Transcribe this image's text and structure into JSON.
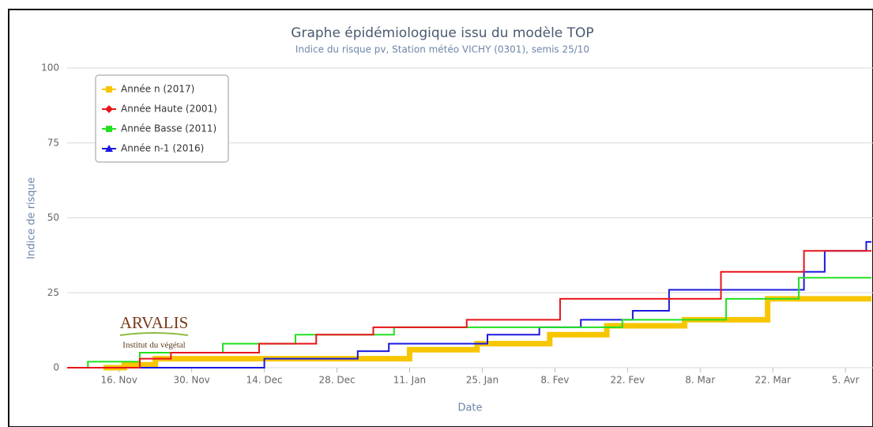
{
  "chart_data": {
    "type": "step-line",
    "title": "Graphe épidémiologique issu du modèle TOP",
    "subtitle": "Indice du risque pv, Station météo VICHY (0301), semis 25/10",
    "x_label": "Date",
    "y_label": "Indice de risque",
    "logo": {
      "name": "ARVALIS",
      "tagline": "Institut du végétal"
    },
    "xlim": [
      "11-06",
      "04-10"
    ],
    "xticks": [
      {
        "value": "11-16",
        "label": "16. Nov"
      },
      {
        "value": "11-30",
        "label": "30. Nov"
      },
      {
        "value": "12-14",
        "label": "14. Dec"
      },
      {
        "value": "12-28",
        "label": "28. Dec"
      },
      {
        "value": "01-11",
        "label": "11. Jan"
      },
      {
        "value": "01-25",
        "label": "25. Jan"
      },
      {
        "value": "02-08",
        "label": "8. Fev"
      },
      {
        "value": "02-22",
        "label": "22. Fev"
      },
      {
        "value": "03-08",
        "label": "8. Mar"
      },
      {
        "value": "03-22",
        "label": "22. Mar"
      },
      {
        "value": "04-05",
        "label": "5. Avr"
      }
    ],
    "ylim": [
      0,
      100
    ],
    "yticks": [
      0,
      25,
      50,
      75,
      100
    ],
    "grid": true,
    "legend": "top-left",
    "series": [
      {
        "name": "Année n (2017)",
        "color": "#f7c600",
        "marker": "square",
        "width": 7,
        "x": [
          "11-13",
          "11-17",
          "11-23",
          "01-11",
          "01-24",
          "02-07",
          "02-18",
          "03-05",
          "03-21",
          "04-10"
        ],
        "values": [
          0,
          1,
          3,
          6,
          8,
          11,
          14,
          16,
          23,
          23
        ]
      },
      {
        "name": "Année Haute (2001)",
        "color": "#e8141a",
        "marker": "diamond",
        "width": 2,
        "x": [
          "11-06",
          "11-20",
          "11-26",
          "12-13",
          "12-24",
          "01-04",
          "01-22",
          "02-09",
          "03-12",
          "03-28",
          "04-10"
        ],
        "values": [
          0,
          3,
          5,
          8,
          11,
          13.5,
          16,
          23,
          32,
          39,
          39
        ]
      },
      {
        "name": "Année Basse (2011)",
        "color": "#22e022",
        "marker": "square",
        "width": 2,
        "x": [
          "11-06",
          "11-10",
          "11-20",
          "12-06",
          "12-20",
          "01-08",
          "02-21",
          "03-13",
          "03-27",
          "04-10"
        ],
        "values": [
          0,
          2,
          5,
          8,
          11,
          13.5,
          16,
          23,
          30,
          30
        ]
      },
      {
        "name": "Année n-1 (2016)",
        "color": "#1a1ae0",
        "marker": "triangle",
        "width": 2,
        "x": [
          "11-06",
          "12-14",
          "01-01",
          "01-07",
          "01-26",
          "02-05",
          "02-13",
          "02-23",
          "03-02",
          "03-28",
          "04-01",
          "04-09",
          "04-10"
        ],
        "values": [
          0,
          3,
          5.5,
          8,
          11,
          13.5,
          16,
          19,
          26,
          32,
          39,
          42,
          42
        ]
      }
    ]
  }
}
